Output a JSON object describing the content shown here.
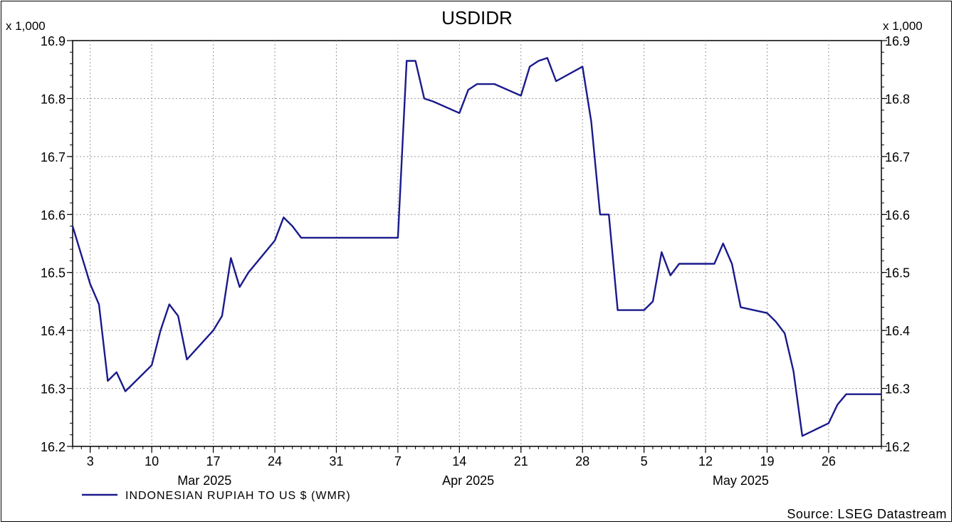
{
  "chart_data": {
    "type": "line",
    "title": "USDIDR",
    "y_multiplier_left": "x 1,000",
    "y_multiplier_right": "x 1,000",
    "ylim": [
      16.2,
      16.9
    ],
    "yticks": [
      "16.2",
      "16.3",
      "16.4",
      "16.5",
      "16.6",
      "16.7",
      "16.8",
      "16.9"
    ],
    "xlim": [
      "2025-03-01",
      "2025-06-01"
    ],
    "x_tick_labels": [
      {
        "date": "2025-03-03",
        "label": "3"
      },
      {
        "date": "2025-03-10",
        "label": "10"
      },
      {
        "date": "2025-03-17",
        "label": "17"
      },
      {
        "date": "2025-03-24",
        "label": "24"
      },
      {
        "date": "2025-03-31",
        "label": "31"
      },
      {
        "date": "2025-04-07",
        "label": "7"
      },
      {
        "date": "2025-04-14",
        "label": "14"
      },
      {
        "date": "2025-04-21",
        "label": "21"
      },
      {
        "date": "2025-04-28",
        "label": "28"
      },
      {
        "date": "2025-05-05",
        "label": "5"
      },
      {
        "date": "2025-05-12",
        "label": "12"
      },
      {
        "date": "2025-05-19",
        "label": "19"
      },
      {
        "date": "2025-05-26",
        "label": "26"
      }
    ],
    "month_labels": [
      {
        "date": "2025-03-16",
        "label": "Mar 2025"
      },
      {
        "date": "2025-04-15",
        "label": "Apr 2025"
      },
      {
        "date": "2025-05-16",
        "label": "May 2025"
      }
    ],
    "grid": true,
    "legend_position": "bottom-left",
    "source": "Source: LSEG Datastream",
    "series": [
      {
        "name": "INDONESIAN RUPIAH TO US $ (WMR)",
        "color": "#1a1a8c",
        "points": [
          [
            "2025-03-01",
            16.58
          ],
          [
            "2025-03-03",
            16.48
          ],
          [
            "2025-03-04",
            16.445
          ],
          [
            "2025-03-05",
            16.313
          ],
          [
            "2025-03-06",
            16.328
          ],
          [
            "2025-03-07",
            16.295
          ],
          [
            "2025-03-10",
            16.34
          ],
          [
            "2025-03-11",
            16.4
          ],
          [
            "2025-03-12",
            16.445
          ],
          [
            "2025-03-13",
            16.425
          ],
          [
            "2025-03-14",
            16.35
          ],
          [
            "2025-03-17",
            16.4
          ],
          [
            "2025-03-18",
            16.425
          ],
          [
            "2025-03-19",
            16.525
          ],
          [
            "2025-03-20",
            16.475
          ],
          [
            "2025-03-21",
            16.5
          ],
          [
            "2025-03-24",
            16.555
          ],
          [
            "2025-03-25",
            16.595
          ],
          [
            "2025-03-26",
            16.58
          ],
          [
            "2025-03-27",
            16.56
          ],
          [
            "2025-03-28",
            16.56
          ],
          [
            "2025-03-31",
            16.56
          ],
          [
            "2025-04-01",
            16.56
          ],
          [
            "2025-04-02",
            16.56
          ],
          [
            "2025-04-03",
            16.56
          ],
          [
            "2025-04-04",
            16.56
          ],
          [
            "2025-04-07",
            16.56
          ],
          [
            "2025-04-08",
            16.865
          ],
          [
            "2025-04-09",
            16.865
          ],
          [
            "2025-04-10",
            16.8
          ],
          [
            "2025-04-11",
            16.795
          ],
          [
            "2025-04-14",
            16.775
          ],
          [
            "2025-04-15",
            16.815
          ],
          [
            "2025-04-16",
            16.825
          ],
          [
            "2025-04-17",
            16.825
          ],
          [
            "2025-04-18",
            16.825
          ],
          [
            "2025-04-21",
            16.805
          ],
          [
            "2025-04-22",
            16.855
          ],
          [
            "2025-04-23",
            16.865
          ],
          [
            "2025-04-24",
            16.87
          ],
          [
            "2025-04-25",
            16.83
          ],
          [
            "2025-04-28",
            16.855
          ],
          [
            "2025-04-29",
            16.76
          ],
          [
            "2025-04-30",
            16.6
          ],
          [
            "2025-05-01",
            16.6
          ],
          [
            "2025-05-02",
            16.435
          ],
          [
            "2025-05-05",
            16.435
          ],
          [
            "2025-05-06",
            16.45
          ],
          [
            "2025-05-07",
            16.535
          ],
          [
            "2025-05-08",
            16.495
          ],
          [
            "2025-05-09",
            16.515
          ],
          [
            "2025-05-12",
            16.515
          ],
          [
            "2025-05-13",
            16.515
          ],
          [
            "2025-05-14",
            16.55
          ],
          [
            "2025-05-15",
            16.515
          ],
          [
            "2025-05-16",
            16.44
          ],
          [
            "2025-05-19",
            16.43
          ],
          [
            "2025-05-20",
            16.415
          ],
          [
            "2025-05-21",
            16.395
          ],
          [
            "2025-05-22",
            16.33
          ],
          [
            "2025-05-23",
            16.218
          ],
          [
            "2025-05-26",
            16.24
          ],
          [
            "2025-05-27",
            16.272
          ],
          [
            "2025-05-28",
            16.29
          ],
          [
            "2025-05-29",
            16.29
          ],
          [
            "2025-05-30",
            16.29
          ],
          [
            "2025-06-01",
            16.29
          ]
        ]
      }
    ]
  }
}
